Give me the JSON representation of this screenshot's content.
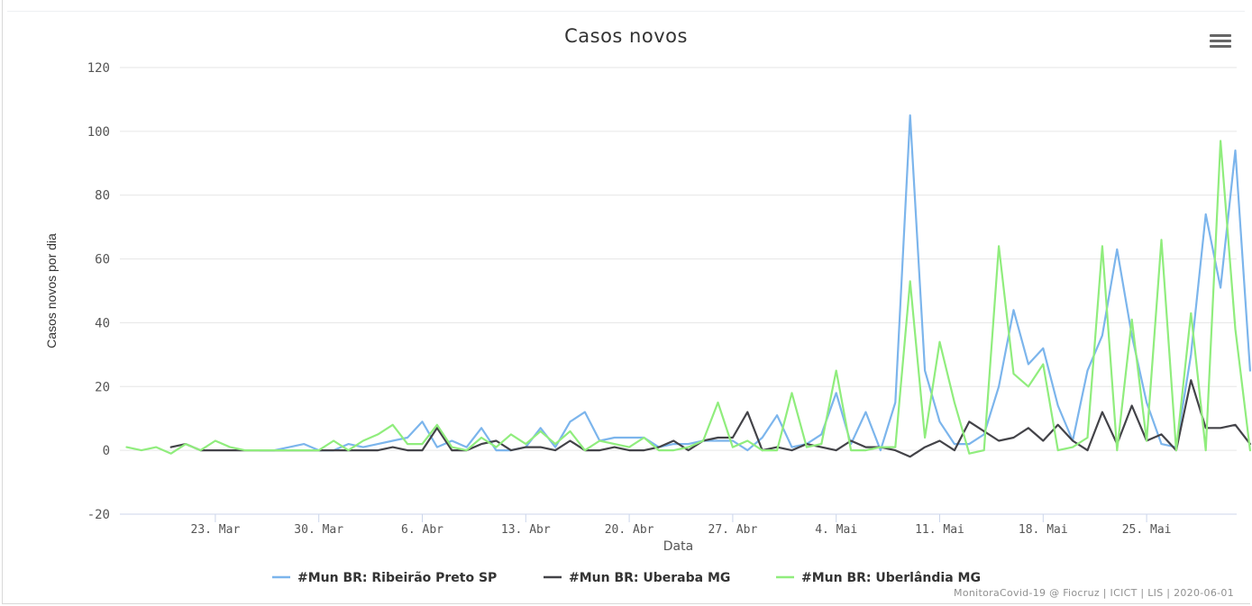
{
  "chart_data": {
    "type": "line",
    "title": "Casos novos",
    "xlabel": "Data",
    "ylabel": "Casos novos por dia",
    "ylim": [
      -20,
      120
    ],
    "yticks": [
      -20,
      0,
      20,
      40,
      60,
      80,
      100,
      120
    ],
    "x_start_label": "2020-03-17",
    "x_ticks": [
      "23. Mar",
      "30. Mar",
      "6. Abr",
      "13. Abr",
      "20. Abr",
      "27. Abr",
      "4. Mai",
      "11. Mai",
      "18. Mai",
      "25. Mai"
    ],
    "legend_position": "bottom-center",
    "grid": true,
    "series": [
      {
        "name": "#Mun BR: Ribeirão Preto SP",
        "color": "#7cb5ec",
        "points": [
          [
            "2020-03-26",
            0
          ],
          [
            "2020-03-27",
            0
          ],
          [
            "2020-03-28",
            1
          ],
          [
            "2020-03-29",
            2
          ],
          [
            "2020-03-30",
            0
          ],
          [
            "2020-03-31",
            0
          ],
          [
            "2020-04-01",
            2
          ],
          [
            "2020-04-02",
            1
          ],
          [
            "2020-04-03",
            2
          ],
          [
            "2020-04-04",
            3
          ],
          [
            "2020-04-05",
            4
          ],
          [
            "2020-04-06",
            9
          ],
          [
            "2020-04-07",
            1
          ],
          [
            "2020-04-08",
            3
          ],
          [
            "2020-04-09",
            1
          ],
          [
            "2020-04-10",
            7
          ],
          [
            "2020-04-11",
            0
          ],
          [
            "2020-04-12",
            0
          ],
          [
            "2020-04-13",
            1
          ],
          [
            "2020-04-14",
            7
          ],
          [
            "2020-04-15",
            1
          ],
          [
            "2020-04-16",
            9
          ],
          [
            "2020-04-17",
            12
          ],
          [
            "2020-04-18",
            3
          ],
          [
            "2020-04-19",
            4
          ],
          [
            "2020-04-20",
            4
          ],
          [
            "2020-04-21",
            4
          ],
          [
            "2020-04-22",
            1
          ],
          [
            "2020-04-23",
            2
          ],
          [
            "2020-04-24",
            2
          ],
          [
            "2020-04-25",
            3
          ],
          [
            "2020-04-26",
            3
          ],
          [
            "2020-04-27",
            3
          ],
          [
            "2020-04-28",
            0
          ],
          [
            "2020-04-29",
            4
          ],
          [
            "2020-04-30",
            11
          ],
          [
            "2020-05-01",
            1
          ],
          [
            "2020-05-02",
            2
          ],
          [
            "2020-05-03",
            5
          ],
          [
            "2020-05-04",
            18
          ],
          [
            "2020-05-05",
            2
          ],
          [
            "2020-05-06",
            12
          ],
          [
            "2020-05-07",
            0
          ],
          [
            "2020-05-08",
            15
          ],
          [
            "2020-05-09",
            105
          ],
          [
            "2020-05-10",
            25
          ],
          [
            "2020-05-11",
            9
          ],
          [
            "2020-05-12",
            2
          ],
          [
            "2020-05-13",
            2
          ],
          [
            "2020-05-14",
            5
          ],
          [
            "2020-05-15",
            20
          ],
          [
            "2020-05-16",
            44
          ],
          [
            "2020-05-17",
            27
          ],
          [
            "2020-05-18",
            32
          ],
          [
            "2020-05-19",
            14
          ],
          [
            "2020-05-20",
            3
          ],
          [
            "2020-05-21",
            25
          ],
          [
            "2020-05-22",
            36
          ],
          [
            "2020-05-23",
            63
          ],
          [
            "2020-05-24",
            36
          ],
          [
            "2020-05-25",
            15
          ],
          [
            "2020-05-26",
            2
          ],
          [
            "2020-05-27",
            1
          ],
          [
            "2020-05-28",
            30
          ],
          [
            "2020-05-29",
            74
          ],
          [
            "2020-05-30",
            51
          ],
          [
            "2020-05-31",
            94
          ],
          [
            "2020-06-01",
            25
          ]
        ]
      },
      {
        "name": "#Mun BR: Uberaba MG",
        "color": "#434348",
        "points": [
          [
            "2020-03-20",
            1
          ],
          [
            "2020-03-21",
            2
          ],
          [
            "2020-03-22",
            0
          ],
          [
            "2020-03-23",
            0
          ],
          [
            "2020-03-24",
            0
          ],
          [
            "2020-03-25",
            0
          ],
          [
            "2020-03-26",
            0
          ],
          [
            "2020-03-27",
            0
          ],
          [
            "2020-03-28",
            0
          ],
          [
            "2020-03-29",
            0
          ],
          [
            "2020-03-30",
            0
          ],
          [
            "2020-03-31",
            0
          ],
          [
            "2020-04-01",
            0
          ],
          [
            "2020-04-02",
            0
          ],
          [
            "2020-04-03",
            0
          ],
          [
            "2020-04-04",
            1
          ],
          [
            "2020-04-05",
            0
          ],
          [
            "2020-04-06",
            0
          ],
          [
            "2020-04-07",
            7
          ],
          [
            "2020-04-08",
            0
          ],
          [
            "2020-04-09",
            0
          ],
          [
            "2020-04-10",
            2
          ],
          [
            "2020-04-11",
            3
          ],
          [
            "2020-04-12",
            0
          ],
          [
            "2020-04-13",
            1
          ],
          [
            "2020-04-14",
            1
          ],
          [
            "2020-04-15",
            0
          ],
          [
            "2020-04-16",
            3
          ],
          [
            "2020-04-17",
            0
          ],
          [
            "2020-04-18",
            0
          ],
          [
            "2020-04-19",
            1
          ],
          [
            "2020-04-20",
            0
          ],
          [
            "2020-04-21",
            0
          ],
          [
            "2020-04-22",
            1
          ],
          [
            "2020-04-23",
            3
          ],
          [
            "2020-04-24",
            0
          ],
          [
            "2020-04-25",
            3
          ],
          [
            "2020-04-26",
            4
          ],
          [
            "2020-04-27",
            4
          ],
          [
            "2020-04-28",
            12
          ],
          [
            "2020-04-29",
            0
          ],
          [
            "2020-04-30",
            1
          ],
          [
            "2020-05-01",
            0
          ],
          [
            "2020-05-02",
            2
          ],
          [
            "2020-05-03",
            1
          ],
          [
            "2020-05-04",
            0
          ],
          [
            "2020-05-05",
            3
          ],
          [
            "2020-05-06",
            1
          ],
          [
            "2020-05-07",
            1
          ],
          [
            "2020-05-08",
            0
          ],
          [
            "2020-05-09",
            -2
          ],
          [
            "2020-05-10",
            1
          ],
          [
            "2020-05-11",
            3
          ],
          [
            "2020-05-12",
            0
          ],
          [
            "2020-05-13",
            9
          ],
          [
            "2020-05-14",
            6
          ],
          [
            "2020-05-15",
            3
          ],
          [
            "2020-05-16",
            4
          ],
          [
            "2020-05-17",
            7
          ],
          [
            "2020-05-18",
            3
          ],
          [
            "2020-05-19",
            8
          ],
          [
            "2020-05-20",
            3
          ],
          [
            "2020-05-21",
            0
          ],
          [
            "2020-05-22",
            12
          ],
          [
            "2020-05-23",
            2
          ],
          [
            "2020-05-24",
            14
          ],
          [
            "2020-05-25",
            3
          ],
          [
            "2020-05-26",
            5
          ],
          [
            "2020-05-27",
            0
          ],
          [
            "2020-05-28",
            22
          ],
          [
            "2020-05-29",
            7
          ],
          [
            "2020-05-30",
            7
          ],
          [
            "2020-05-31",
            8
          ],
          [
            "2020-06-01",
            2
          ]
        ]
      },
      {
        "name": "#Mun BR: Uberlândia MG",
        "color": "#90ed7d",
        "points": [
          [
            "2020-03-17",
            1
          ],
          [
            "2020-03-18",
            0
          ],
          [
            "2020-03-19",
            1
          ],
          [
            "2020-03-20",
            -1
          ],
          [
            "2020-03-21",
            2
          ],
          [
            "2020-03-22",
            0
          ],
          [
            "2020-03-23",
            3
          ],
          [
            "2020-03-24",
            1
          ],
          [
            "2020-03-25",
            0
          ],
          [
            "2020-03-26",
            0
          ],
          [
            "2020-03-27",
            0
          ],
          [
            "2020-03-28",
            0
          ],
          [
            "2020-03-29",
            0
          ],
          [
            "2020-03-30",
            0
          ],
          [
            "2020-03-31",
            3
          ],
          [
            "2020-04-01",
            0
          ],
          [
            "2020-04-02",
            3
          ],
          [
            "2020-04-03",
            5
          ],
          [
            "2020-04-04",
            8
          ],
          [
            "2020-04-05",
            2
          ],
          [
            "2020-04-06",
            2
          ],
          [
            "2020-04-07",
            8
          ],
          [
            "2020-04-08",
            1
          ],
          [
            "2020-04-09",
            0
          ],
          [
            "2020-04-10",
            4
          ],
          [
            "2020-04-11",
            1
          ],
          [
            "2020-04-12",
            5
          ],
          [
            "2020-04-13",
            2
          ],
          [
            "2020-04-14",
            6
          ],
          [
            "2020-04-15",
            2
          ],
          [
            "2020-04-16",
            6
          ],
          [
            "2020-04-17",
            0
          ],
          [
            "2020-04-18",
            3
          ],
          [
            "2020-04-19",
            2
          ],
          [
            "2020-04-20",
            1
          ],
          [
            "2020-04-21",
            4
          ],
          [
            "2020-04-22",
            0
          ],
          [
            "2020-04-23",
            0
          ],
          [
            "2020-04-24",
            1
          ],
          [
            "2020-04-25",
            3
          ],
          [
            "2020-04-26",
            15
          ],
          [
            "2020-04-27",
            1
          ],
          [
            "2020-04-28",
            3
          ],
          [
            "2020-04-29",
            0
          ],
          [
            "2020-04-30",
            0
          ],
          [
            "2020-05-01",
            18
          ],
          [
            "2020-05-02",
            1
          ],
          [
            "2020-05-03",
            2
          ],
          [
            "2020-05-04",
            25
          ],
          [
            "2020-05-05",
            0
          ],
          [
            "2020-05-06",
            0
          ],
          [
            "2020-05-07",
            1
          ],
          [
            "2020-05-08",
            1
          ],
          [
            "2020-05-09",
            53
          ],
          [
            "2020-05-10",
            4
          ],
          [
            "2020-05-11",
            34
          ],
          [
            "2020-05-12",
            15
          ],
          [
            "2020-05-13",
            -1
          ],
          [
            "2020-05-14",
            0
          ],
          [
            "2020-05-15",
            64
          ],
          [
            "2020-05-16",
            24
          ],
          [
            "2020-05-17",
            20
          ],
          [
            "2020-05-18",
            27
          ],
          [
            "2020-05-19",
            0
          ],
          [
            "2020-05-20",
            1
          ],
          [
            "2020-05-21",
            4
          ],
          [
            "2020-05-22",
            64
          ],
          [
            "2020-05-23",
            0
          ],
          [
            "2020-05-24",
            41
          ],
          [
            "2020-05-25",
            3
          ],
          [
            "2020-05-26",
            66
          ],
          [
            "2020-05-27",
            0
          ],
          [
            "2020-05-28",
            43
          ],
          [
            "2020-05-29",
            0
          ],
          [
            "2020-05-30",
            97
          ],
          [
            "2020-05-31",
            38
          ],
          [
            "2020-06-01",
            0
          ]
        ]
      }
    ]
  },
  "menu_icon": "hamburger-menu-icon",
  "credit": "MonitoraCovid-19 @ Fiocruz | ICICT | LIS | 2020-06-01"
}
